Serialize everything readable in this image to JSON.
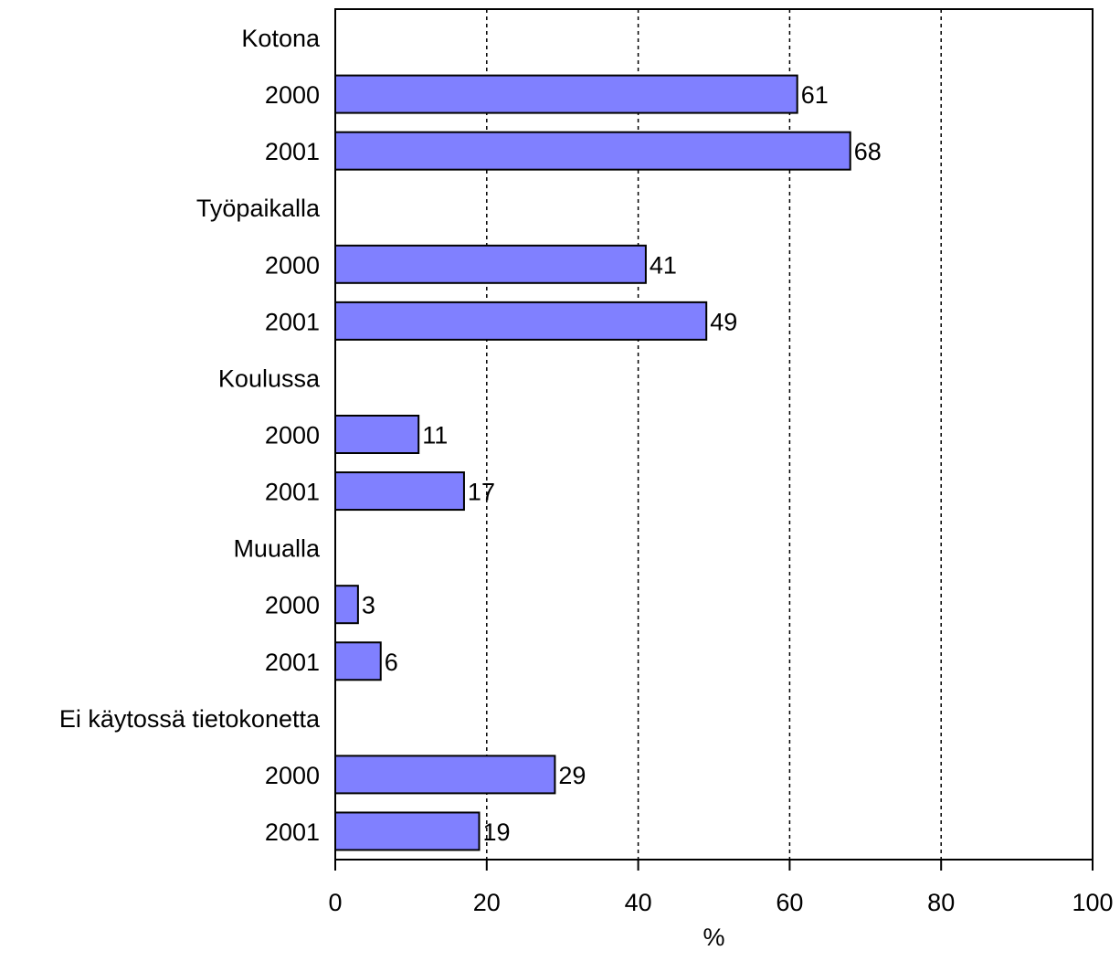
{
  "chart_data": {
    "type": "bar",
    "orientation": "horizontal",
    "categories": [
      "Kotona",
      "2000",
      "2001",
      "Työpaikalla",
      "2000",
      "2001",
      "Koulussa",
      "2000",
      "2001",
      "Muualla",
      "2000",
      "2001",
      "Ei käytossä tietokonetta",
      "2000",
      "2001"
    ],
    "values": [
      null,
      61,
      68,
      null,
      41,
      49,
      null,
      11,
      17,
      null,
      3,
      6,
      null,
      29,
      19
    ],
    "value_labels": [
      "",
      "61",
      "68",
      "",
      "41",
      "49",
      "",
      "11",
      "17",
      "",
      "3",
      "6",
      "",
      "29",
      "19"
    ],
    "xlabel": "%",
    "ylabel": "",
    "title": "",
    "xlim": [
      0,
      100
    ],
    "xticks": [
      0,
      20,
      40,
      60,
      80,
      100
    ],
    "xtick_labels": [
      "0",
      "20",
      "40",
      "60",
      "80",
      "100"
    ],
    "grid": "vertical dashed",
    "legend": "none",
    "bar_color": "#8080ff",
    "bar_edge_color": "#000000"
  }
}
